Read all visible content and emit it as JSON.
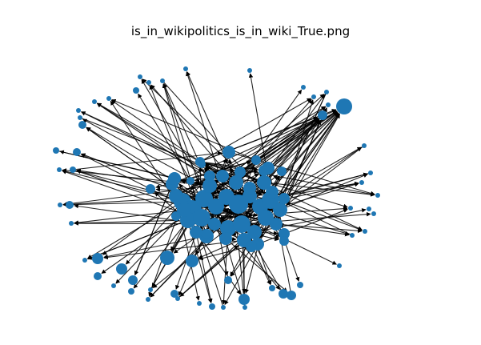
{
  "figure": {
    "title": "is_in_wikipolitics_is_in_wiki_True.png"
  },
  "chart_data": {
    "type": "network",
    "directed": true,
    "node_color": "#1f77b4",
    "edge_color": "#000000",
    "axes_visible": false
  }
}
